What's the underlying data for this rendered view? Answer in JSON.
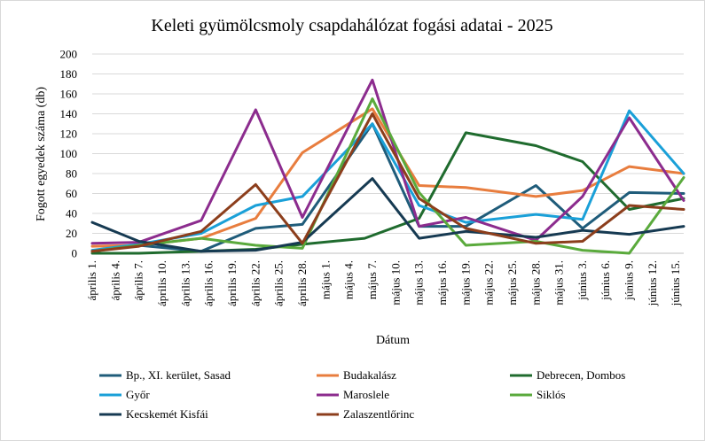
{
  "chart_data": {
    "type": "line",
    "title": "Keleti gyümölcsmoly csapdahálózat fogási adatai - 2025",
    "xlabel": "Dátum",
    "ylabel": "Fogott egyedek száma (db)",
    "ylim": [
      0,
      200
    ],
    "yticks": [
      0,
      20,
      40,
      60,
      80,
      100,
      120,
      140,
      160,
      180,
      200
    ],
    "grid": "horizontal",
    "legend": "bottom",
    "x_tick_labels": [
      "április 1.",
      "április 4.",
      "április 7.",
      "április 10.",
      "április 13.",
      "április 16.",
      "április 19.",
      "április 22.",
      "április 25.",
      "április 28.",
      "május 1.",
      "május 4.",
      "május 7.",
      "május 10.",
      "május 13.",
      "május 16.",
      "május 19.",
      "május 22.",
      "május 25.",
      "május 28.",
      "május 31.",
      "június 3.",
      "június 6.",
      "június 9.",
      "június 12.",
      "június 15."
    ],
    "x_tick_days": [
      1,
      4,
      7,
      10,
      13,
      16,
      19,
      22,
      25,
      28,
      31,
      34,
      37,
      40,
      43,
      46,
      49,
      52,
      55,
      58,
      61,
      64,
      67,
      70,
      73,
      76
    ],
    "series": [
      {
        "name": "Bp., XI. kerület, Sasad",
        "color": "#1f5c7a",
        "x": [
          1,
          7,
          15,
          22,
          28,
          37,
          43,
          49,
          58,
          64,
          70,
          77
        ],
        "y": [
          2,
          8,
          2,
          25,
          29,
          130,
          27,
          27,
          68,
          25,
          61,
          60
        ]
      },
      {
        "name": "Budakalász",
        "color": "#e87d3e",
        "x": [
          1,
          7,
          15,
          22,
          28,
          37,
          43,
          49,
          58,
          64,
          70,
          77
        ],
        "y": [
          7,
          8,
          15,
          35,
          101,
          145,
          68,
          66,
          57,
          63,
          87,
          80
        ]
      },
      {
        "name": "Debrecen, Dombos",
        "color": "#1f6b2e",
        "x": [
          1,
          7,
          15,
          22,
          28,
          36,
          43,
          49,
          58,
          64,
          70,
          77
        ],
        "y": [
          0,
          0,
          2,
          4,
          9,
          15,
          35,
          121,
          108,
          92,
          44,
          55
        ]
      },
      {
        "name": "Győr",
        "color": "#1aa0d8",
        "x": [
          1,
          7,
          15,
          22,
          28,
          37,
          43,
          49,
          58,
          64,
          70,
          77
        ],
        "y": [
          3,
          9,
          20,
          48,
          57,
          130,
          48,
          31,
          39,
          34,
          143,
          80
        ]
      },
      {
        "name": "Maroslele",
        "color": "#8c2c8e",
        "x": [
          1,
          7,
          15,
          22,
          28,
          37,
          43,
          49,
          58,
          64,
          70,
          77
        ],
        "y": [
          10,
          11,
          33,
          144,
          36,
          174,
          27,
          36,
          13,
          57,
          136,
          53
        ]
      },
      {
        "name": "Siklós",
        "color": "#5aaa3c",
        "x": [
          1,
          7,
          15,
          22,
          28,
          37,
          43,
          49,
          58,
          64,
          70,
          77
        ],
        "y": [
          2,
          8,
          15,
          8,
          5,
          155,
          61,
          8,
          12,
          3,
          0,
          76
        ]
      },
      {
        "name": "Kecskemét Kisfái",
        "color": "#163a52",
        "x": [
          1,
          7,
          15,
          22,
          28,
          37,
          43,
          49,
          58,
          64,
          70,
          77
        ],
        "y": [
          31,
          12,
          2,
          3,
          11,
          75,
          15,
          22,
          16,
          23,
          19,
          27
        ]
      },
      {
        "name": "Zalaszentlőrinc",
        "color": "#8c3e1c",
        "x": [
          1,
          7,
          15,
          22,
          28,
          37,
          43,
          49,
          58,
          64,
          70,
          77
        ],
        "y": [
          2,
          7,
          22,
          69,
          10,
          140,
          55,
          25,
          10,
          12,
          48,
          44
        ]
      }
    ]
  }
}
